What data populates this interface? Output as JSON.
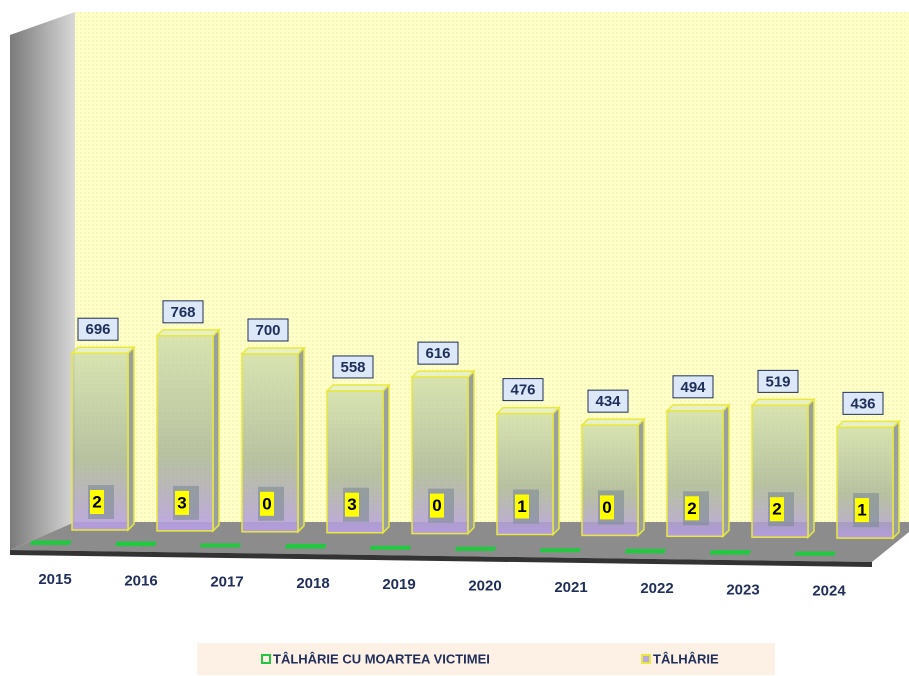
{
  "chart_data": {
    "type": "bar3d",
    "categories": [
      "2015",
      "2016",
      "2017",
      "2018",
      "2019",
      "2020",
      "2021",
      "2022",
      "2023",
      "2024"
    ],
    "series": [
      {
        "name": "TÂLHÂRIE CU MOARTEA VICTIMEI",
        "color": "#22c840",
        "values": [
          2,
          3,
          0,
          3,
          0,
          1,
          0,
          2,
          2,
          1
        ]
      },
      {
        "name": "TÂLHÂRIE",
        "color": "#b8a8e0",
        "values": [
          696,
          768,
          700,
          558,
          616,
          476,
          434,
          494,
          519,
          436
        ]
      }
    ]
  }
}
